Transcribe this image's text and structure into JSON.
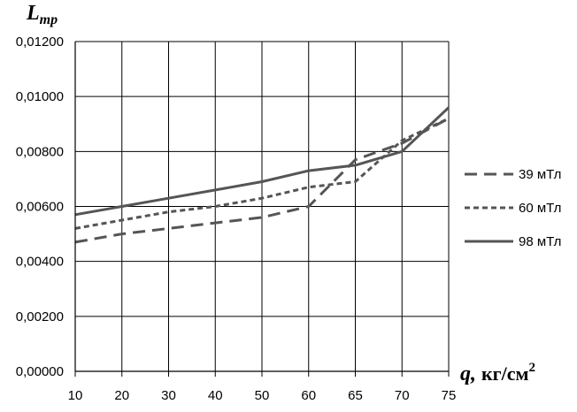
{
  "chart_data": {
    "type": "line",
    "ylabel_main": "L",
    "ylabel_sub": "тр",
    "xlabel_main": "q,",
    "xlabel_unit": "кг/см",
    "xlabel_sup": "2",
    "x_ticks": [
      "10",
      "20",
      "30",
      "40",
      "50",
      "60",
      "65",
      "70",
      "75"
    ],
    "y_ticks": [
      "0,00000",
      "0,00200",
      "0,00400",
      "0,00600",
      "0,00800",
      "0,01000",
      "0,01200"
    ],
    "ylim": [
      0,
      0.012
    ],
    "grid": true,
    "legend_position": "right",
    "series": [
      {
        "name": "39 мТл",
        "style": "long-dash",
        "color": "#555555",
        "points": [
          [
            0,
            0.0047
          ],
          [
            1,
            0.005
          ],
          [
            2,
            0.0052
          ],
          [
            3,
            0.0054
          ],
          [
            4,
            0.0056
          ],
          [
            5,
            0.006
          ],
          [
            6,
            0.0077
          ],
          [
            7,
            0.0083
          ],
          [
            8,
            0.0092
          ]
        ]
      },
      {
        "name": "60 мТл",
        "style": "short-dash",
        "color": "#555555",
        "points": [
          [
            0,
            0.0052
          ],
          [
            1,
            0.0055
          ],
          [
            2,
            0.0058
          ],
          [
            3,
            0.006
          ],
          [
            4,
            0.0063
          ],
          [
            5,
            0.0067
          ],
          [
            6,
            0.0069
          ],
          [
            7,
            0.0084
          ],
          [
            8,
            0.0092
          ]
        ]
      },
      {
        "name": "98 мТл",
        "style": "solid",
        "color": "#555555",
        "points": [
          [
            0,
            0.0057
          ],
          [
            1,
            0.006
          ],
          [
            2,
            0.0063
          ],
          [
            3,
            0.0066
          ],
          [
            4,
            0.0069
          ],
          [
            5,
            0.0073
          ],
          [
            6,
            0.0075
          ],
          [
            7,
            0.008
          ],
          [
            8,
            0.0096
          ]
        ]
      }
    ]
  }
}
